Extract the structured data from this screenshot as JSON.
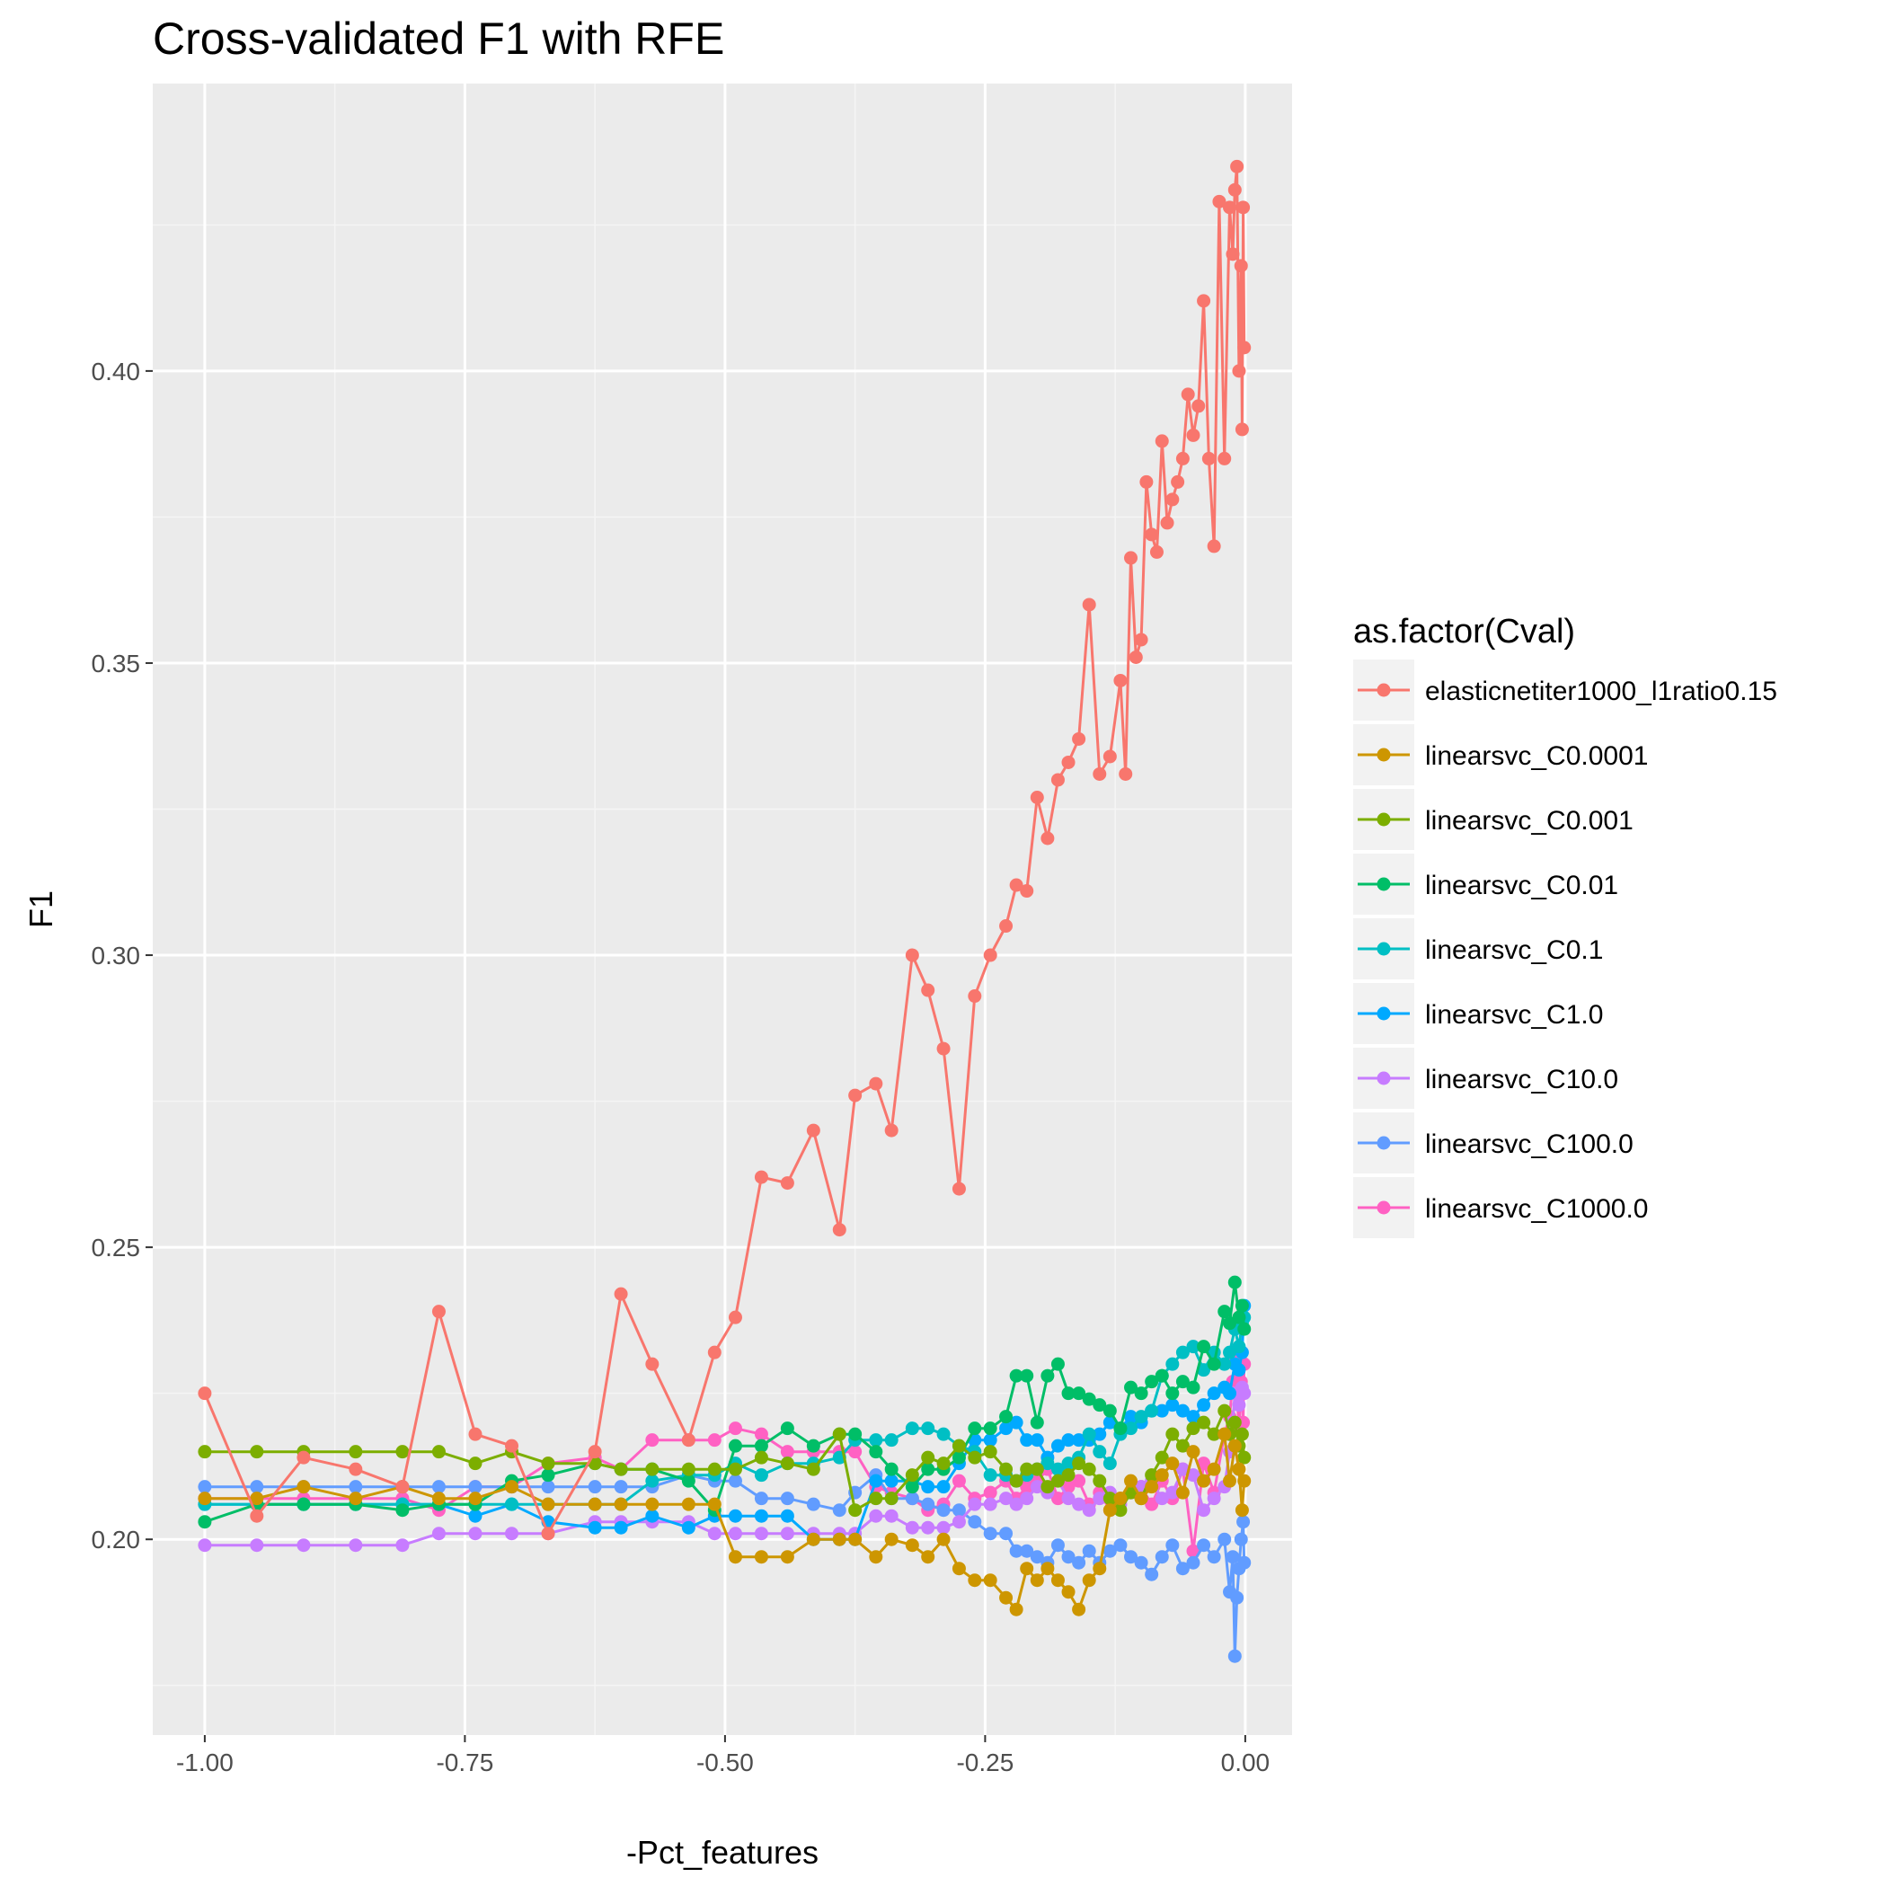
{
  "chart_data": {
    "type": "line",
    "title": "Cross-validated F1 with RFE",
    "xlabel": "-Pct_features",
    "ylabel": "F1",
    "xlim": [
      -1.05,
      0.045
    ],
    "ylim": [
      0.1665,
      0.4492
    ],
    "x_ticks": [
      -1.0,
      -0.75,
      -0.5,
      -0.25,
      0.0
    ],
    "x_tick_labels": [
      "-1.00",
      "-0.75",
      "-0.50",
      "-0.25",
      "0.00"
    ],
    "y_ticks": [
      0.2,
      0.25,
      0.3,
      0.35,
      0.4
    ],
    "y_tick_labels": [
      "0.20",
      "0.25",
      "0.30",
      "0.35",
      "0.40"
    ],
    "grid": true,
    "legend_title": "as.factor(Cval)",
    "legend_position": "right",
    "series": [
      {
        "name": "elasticnetiter1000_l1ratio0.15",
        "color": "#F8766D",
        "x": [
          -1.0,
          -0.95,
          -0.905,
          -0.855,
          -0.81,
          -0.775,
          -0.74,
          -0.705,
          -0.67,
          -0.625,
          -0.6,
          -0.57,
          -0.535,
          -0.51,
          -0.49,
          -0.465,
          -0.44,
          -0.415,
          -0.39,
          -0.375,
          -0.355,
          -0.34,
          -0.32,
          -0.305,
          -0.29,
          -0.275,
          -0.26,
          -0.245,
          -0.23,
          -0.22,
          -0.21,
          -0.2,
          -0.19,
          -0.18,
          -0.17,
          -0.16,
          -0.15,
          -0.14,
          -0.13,
          -0.12,
          -0.115,
          -0.11,
          -0.105,
          -0.1,
          -0.095,
          -0.09,
          -0.085,
          -0.08,
          -0.075,
          -0.07,
          -0.065,
          -0.06,
          -0.055,
          -0.05,
          -0.045,
          -0.04,
          -0.035,
          -0.03,
          -0.025,
          -0.02,
          -0.015,
          -0.012,
          -0.01,
          -0.008,
          -0.006,
          -0.004,
          -0.003,
          -0.002,
          -0.001
        ],
        "y": [
          0.225,
          0.204,
          0.214,
          0.212,
          0.209,
          0.239,
          0.218,
          0.216,
          0.201,
          0.215,
          0.242,
          0.23,
          0.217,
          0.232,
          0.238,
          0.262,
          0.261,
          0.27,
          0.253,
          0.276,
          0.278,
          0.27,
          0.3,
          0.294,
          0.284,
          0.26,
          0.293,
          0.3,
          0.305,
          0.312,
          0.311,
          0.327,
          0.32,
          0.33,
          0.333,
          0.337,
          0.36,
          0.331,
          0.334,
          0.347,
          0.331,
          0.368,
          0.351,
          0.354,
          0.381,
          0.372,
          0.369,
          0.388,
          0.374,
          0.378,
          0.381,
          0.385,
          0.396,
          0.389,
          0.394,
          0.412,
          0.385,
          0.37,
          0.429,
          0.385,
          0.428,
          0.42,
          0.431,
          0.435,
          0.4,
          0.418,
          0.39,
          0.428,
          0.404
        ]
      },
      {
        "name": "linearsvc_C0.0001",
        "color": "#CD9600",
        "x": [
          -1.0,
          -0.95,
          -0.905,
          -0.855,
          -0.81,
          -0.775,
          -0.74,
          -0.705,
          -0.67,
          -0.625,
          -0.6,
          -0.57,
          -0.535,
          -0.51,
          -0.49,
          -0.465,
          -0.44,
          -0.415,
          -0.39,
          -0.375,
          -0.355,
          -0.34,
          -0.32,
          -0.305,
          -0.29,
          -0.275,
          -0.26,
          -0.245,
          -0.23,
          -0.22,
          -0.21,
          -0.2,
          -0.19,
          -0.18,
          -0.17,
          -0.16,
          -0.15,
          -0.14,
          -0.13,
          -0.12,
          -0.11,
          -0.1,
          -0.09,
          -0.08,
          -0.07,
          -0.06,
          -0.05,
          -0.04,
          -0.03,
          -0.02,
          -0.015,
          -0.01,
          -0.006,
          -0.003,
          -0.001
        ],
        "y": [
          0.207,
          0.207,
          0.209,
          0.207,
          0.209,
          0.207,
          0.207,
          0.209,
          0.206,
          0.206,
          0.206,
          0.206,
          0.206,
          0.206,
          0.197,
          0.197,
          0.197,
          0.2,
          0.2,
          0.2,
          0.197,
          0.2,
          0.199,
          0.197,
          0.2,
          0.195,
          0.193,
          0.193,
          0.19,
          0.188,
          0.195,
          0.193,
          0.195,
          0.193,
          0.191,
          0.188,
          0.193,
          0.195,
          0.205,
          0.207,
          0.21,
          0.207,
          0.209,
          0.211,
          0.213,
          0.208,
          0.215,
          0.21,
          0.212,
          0.218,
          0.21,
          0.216,
          0.212,
          0.205,
          0.21
        ]
      },
      {
        "name": "linearsvc_C0.001",
        "color": "#7CAE00",
        "x": [
          -1.0,
          -0.95,
          -0.905,
          -0.855,
          -0.81,
          -0.775,
          -0.74,
          -0.705,
          -0.67,
          -0.625,
          -0.6,
          -0.57,
          -0.535,
          -0.51,
          -0.49,
          -0.465,
          -0.44,
          -0.415,
          -0.39,
          -0.375,
          -0.355,
          -0.34,
          -0.32,
          -0.305,
          -0.29,
          -0.275,
          -0.26,
          -0.245,
          -0.23,
          -0.22,
          -0.21,
          -0.2,
          -0.19,
          -0.18,
          -0.17,
          -0.16,
          -0.15,
          -0.14,
          -0.13,
          -0.12,
          -0.11,
          -0.1,
          -0.09,
          -0.08,
          -0.07,
          -0.06,
          -0.05,
          -0.04,
          -0.03,
          -0.02,
          -0.015,
          -0.01,
          -0.006,
          -0.003,
          -0.001
        ],
        "y": [
          0.215,
          0.215,
          0.215,
          0.215,
          0.215,
          0.215,
          0.213,
          0.215,
          0.213,
          0.213,
          0.212,
          0.212,
          0.212,
          0.212,
          0.212,
          0.214,
          0.213,
          0.212,
          0.218,
          0.205,
          0.207,
          0.207,
          0.211,
          0.214,
          0.213,
          0.216,
          0.214,
          0.215,
          0.212,
          0.21,
          0.212,
          0.212,
          0.209,
          0.21,
          0.211,
          0.213,
          0.212,
          0.21,
          0.207,
          0.205,
          0.208,
          0.207,
          0.211,
          0.214,
          0.218,
          0.216,
          0.219,
          0.22,
          0.218,
          0.222,
          0.218,
          0.22,
          0.216,
          0.218,
          0.214
        ]
      },
      {
        "name": "linearsvc_C0.01",
        "color": "#00BE67",
        "x": [
          -1.0,
          -0.95,
          -0.905,
          -0.855,
          -0.81,
          -0.775,
          -0.74,
          -0.705,
          -0.67,
          -0.625,
          -0.6,
          -0.57,
          -0.535,
          -0.51,
          -0.49,
          -0.465,
          -0.44,
          -0.415,
          -0.39,
          -0.375,
          -0.355,
          -0.34,
          -0.32,
          -0.305,
          -0.29,
          -0.275,
          -0.26,
          -0.245,
          -0.23,
          -0.22,
          -0.21,
          -0.2,
          -0.19,
          -0.18,
          -0.17,
          -0.16,
          -0.15,
          -0.14,
          -0.13,
          -0.12,
          -0.11,
          -0.1,
          -0.09,
          -0.08,
          -0.07,
          -0.06,
          -0.05,
          -0.04,
          -0.03,
          -0.02,
          -0.015,
          -0.01,
          -0.006,
          -0.003,
          -0.001
        ],
        "y": [
          0.203,
          0.206,
          0.206,
          0.206,
          0.205,
          0.206,
          0.206,
          0.21,
          0.211,
          0.213,
          0.212,
          0.212,
          0.21,
          0.205,
          0.216,
          0.216,
          0.219,
          0.216,
          0.218,
          0.218,
          0.215,
          0.212,
          0.209,
          0.212,
          0.212,
          0.214,
          0.219,
          0.219,
          0.221,
          0.228,
          0.228,
          0.22,
          0.228,
          0.23,
          0.225,
          0.225,
          0.224,
          0.223,
          0.222,
          0.219,
          0.226,
          0.225,
          0.227,
          0.228,
          0.225,
          0.227,
          0.226,
          0.233,
          0.23,
          0.239,
          0.237,
          0.244,
          0.238,
          0.24,
          0.236
        ]
      },
      {
        "name": "linearsvc_C0.1",
        "color": "#00BFC4",
        "x": [
          -1.0,
          -0.95,
          -0.905,
          -0.855,
          -0.81,
          -0.775,
          -0.74,
          -0.705,
          -0.67,
          -0.625,
          -0.6,
          -0.57,
          -0.535,
          -0.51,
          -0.49,
          -0.465,
          -0.44,
          -0.415,
          -0.39,
          -0.375,
          -0.355,
          -0.34,
          -0.32,
          -0.305,
          -0.29,
          -0.275,
          -0.26,
          -0.245,
          -0.23,
          -0.22,
          -0.21,
          -0.2,
          -0.19,
          -0.18,
          -0.17,
          -0.16,
          -0.15,
          -0.14,
          -0.13,
          -0.12,
          -0.11,
          -0.1,
          -0.09,
          -0.08,
          -0.07,
          -0.06,
          -0.05,
          -0.04,
          -0.03,
          -0.02,
          -0.015,
          -0.01,
          -0.006,
          -0.003,
          -0.001
        ],
        "y": [
          0.206,
          0.206,
          0.206,
          0.206,
          0.206,
          0.206,
          0.206,
          0.206,
          0.206,
          0.206,
          0.206,
          0.21,
          0.211,
          0.211,
          0.213,
          0.211,
          0.213,
          0.213,
          0.214,
          0.217,
          0.217,
          0.217,
          0.219,
          0.219,
          0.218,
          0.216,
          0.215,
          0.211,
          0.211,
          0.21,
          0.211,
          0.212,
          0.213,
          0.212,
          0.213,
          0.214,
          0.218,
          0.215,
          0.213,
          0.218,
          0.219,
          0.221,
          0.222,
          0.228,
          0.23,
          0.232,
          0.233,
          0.229,
          0.232,
          0.23,
          0.232,
          0.236,
          0.233,
          0.237,
          0.238
        ]
      },
      {
        "name": "linearsvc_C1.0",
        "color": "#00A9FF",
        "x": [
          -1.0,
          -0.95,
          -0.905,
          -0.855,
          -0.81,
          -0.775,
          -0.74,
          -0.705,
          -0.67,
          -0.625,
          -0.6,
          -0.57,
          -0.535,
          -0.51,
          -0.49,
          -0.465,
          -0.44,
          -0.415,
          -0.39,
          -0.375,
          -0.355,
          -0.34,
          -0.32,
          -0.305,
          -0.29,
          -0.275,
          -0.26,
          -0.245,
          -0.23,
          -0.22,
          -0.21,
          -0.2,
          -0.19,
          -0.18,
          -0.17,
          -0.16,
          -0.15,
          -0.14,
          -0.13,
          -0.12,
          -0.11,
          -0.1,
          -0.09,
          -0.08,
          -0.07,
          -0.06,
          -0.05,
          -0.04,
          -0.03,
          -0.02,
          -0.015,
          -0.01,
          -0.006,
          -0.003,
          -0.001
        ],
        "y": [
          0.206,
          0.206,
          0.206,
          0.206,
          0.206,
          0.206,
          0.204,
          0.206,
          0.203,
          0.202,
          0.202,
          0.204,
          0.202,
          0.204,
          0.204,
          0.204,
          0.204,
          0.2,
          0.2,
          0.2,
          0.21,
          0.21,
          0.21,
          0.209,
          0.209,
          0.213,
          0.217,
          0.217,
          0.219,
          0.22,
          0.217,
          0.217,
          0.214,
          0.216,
          0.217,
          0.217,
          0.217,
          0.218,
          0.22,
          0.219,
          0.221,
          0.22,
          0.222,
          0.222,
          0.223,
          0.222,
          0.221,
          0.223,
          0.225,
          0.226,
          0.225,
          0.23,
          0.229,
          0.232,
          0.24
        ]
      },
      {
        "name": "linearsvc_C10.0",
        "color": "#C77CFF",
        "x": [
          -1.0,
          -0.95,
          -0.905,
          -0.855,
          -0.81,
          -0.775,
          -0.74,
          -0.705,
          -0.67,
          -0.625,
          -0.6,
          -0.57,
          -0.535,
          -0.51,
          -0.49,
          -0.465,
          -0.44,
          -0.415,
          -0.39,
          -0.375,
          -0.355,
          -0.34,
          -0.32,
          -0.305,
          -0.29,
          -0.275,
          -0.26,
          -0.245,
          -0.23,
          -0.22,
          -0.21,
          -0.2,
          -0.19,
          -0.18,
          -0.17,
          -0.16,
          -0.15,
          -0.14,
          -0.13,
          -0.12,
          -0.11,
          -0.1,
          -0.09,
          -0.08,
          -0.07,
          -0.06,
          -0.05,
          -0.04,
          -0.03,
          -0.02,
          -0.015,
          -0.012,
          -0.01,
          -0.006,
          -0.003,
          -0.001
        ],
        "y": [
          0.199,
          0.199,
          0.199,
          0.199,
          0.199,
          0.201,
          0.201,
          0.201,
          0.201,
          0.203,
          0.203,
          0.203,
          0.203,
          0.201,
          0.201,
          0.201,
          0.201,
          0.201,
          0.201,
          0.201,
          0.204,
          0.204,
          0.202,
          0.202,
          0.202,
          0.203,
          0.206,
          0.206,
          0.207,
          0.206,
          0.207,
          0.209,
          0.208,
          0.21,
          0.207,
          0.206,
          0.205,
          0.207,
          0.208,
          0.206,
          0.208,
          0.209,
          0.21,
          0.207,
          0.208,
          0.212,
          0.211,
          0.205,
          0.207,
          0.209,
          0.215,
          0.22,
          0.225,
          0.223,
          0.226,
          0.225
        ]
      },
      {
        "name": "linearsvc_C100.0",
        "color": "#619CFF",
        "x": [
          -1.0,
          -0.95,
          -0.905,
          -0.855,
          -0.81,
          -0.775,
          -0.74,
          -0.705,
          -0.67,
          -0.625,
          -0.6,
          -0.57,
          -0.535,
          -0.51,
          -0.49,
          -0.465,
          -0.44,
          -0.415,
          -0.39,
          -0.375,
          -0.355,
          -0.34,
          -0.32,
          -0.305,
          -0.29,
          -0.275,
          -0.26,
          -0.245,
          -0.23,
          -0.22,
          -0.21,
          -0.2,
          -0.19,
          -0.18,
          -0.17,
          -0.16,
          -0.15,
          -0.14,
          -0.13,
          -0.12,
          -0.11,
          -0.1,
          -0.09,
          -0.08,
          -0.07,
          -0.06,
          -0.05,
          -0.04,
          -0.03,
          -0.02,
          -0.015,
          -0.012,
          -0.01,
          -0.008,
          -0.006,
          -0.004,
          -0.002,
          -0.001
        ],
        "y": [
          0.209,
          0.209,
          0.209,
          0.209,
          0.209,
          0.209,
          0.209,
          0.209,
          0.209,
          0.209,
          0.209,
          0.209,
          0.211,
          0.21,
          0.21,
          0.207,
          0.207,
          0.206,
          0.205,
          0.208,
          0.211,
          0.207,
          0.207,
          0.206,
          0.205,
          0.205,
          0.203,
          0.201,
          0.201,
          0.198,
          0.198,
          0.197,
          0.196,
          0.199,
          0.197,
          0.196,
          0.198,
          0.196,
          0.198,
          0.199,
          0.197,
          0.196,
          0.194,
          0.197,
          0.199,
          0.195,
          0.196,
          0.199,
          0.197,
          0.2,
          0.191,
          0.197,
          0.18,
          0.19,
          0.195,
          0.2,
          0.203,
          0.196
        ]
      },
      {
        "name": "linearsvc_C1000.0",
        "color": "#FF61C3",
        "x": [
          -1.0,
          -0.95,
          -0.905,
          -0.855,
          -0.81,
          -0.775,
          -0.74,
          -0.705,
          -0.67,
          -0.625,
          -0.6,
          -0.57,
          -0.535,
          -0.51,
          -0.49,
          -0.465,
          -0.44,
          -0.415,
          -0.39,
          -0.375,
          -0.355,
          -0.34,
          -0.32,
          -0.305,
          -0.29,
          -0.275,
          -0.26,
          -0.245,
          -0.23,
          -0.22,
          -0.21,
          -0.2,
          -0.19,
          -0.18,
          -0.17,
          -0.16,
          -0.15,
          -0.14,
          -0.13,
          -0.12,
          -0.11,
          -0.1,
          -0.09,
          -0.08,
          -0.07,
          -0.06,
          -0.05,
          -0.04,
          -0.03,
          -0.02,
          -0.015,
          -0.012,
          -0.01,
          -0.008,
          -0.006,
          -0.004,
          -0.002,
          -0.001
        ],
        "y": [
          0.207,
          0.207,
          0.207,
          0.207,
          0.207,
          0.205,
          0.209,
          0.209,
          0.213,
          0.214,
          0.212,
          0.217,
          0.217,
          0.217,
          0.219,
          0.218,
          0.215,
          0.215,
          0.215,
          0.215,
          0.209,
          0.208,
          0.207,
          0.205,
          0.206,
          0.21,
          0.207,
          0.208,
          0.21,
          0.207,
          0.209,
          0.21,
          0.212,
          0.207,
          0.209,
          0.21,
          0.206,
          0.208,
          0.205,
          0.207,
          0.208,
          0.209,
          0.206,
          0.21,
          0.207,
          0.212,
          0.198,
          0.213,
          0.208,
          0.218,
          0.221,
          0.227,
          0.231,
          0.225,
          0.219,
          0.227,
          0.22,
          0.23
        ]
      }
    ]
  }
}
